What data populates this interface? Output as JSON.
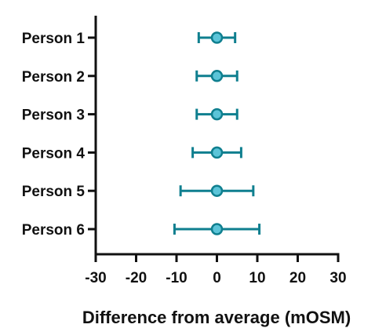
{
  "chart_data": {
    "type": "scatter",
    "orientation": "horizontal",
    "categories": [
      "Person 1",
      "Person 2",
      "Person 3",
      "Person 4",
      "Person 5",
      "Person 6"
    ],
    "points": [
      {
        "label": "Person 1",
        "value": 0,
        "lower": -4.5,
        "upper": 4.5
      },
      {
        "label": "Person 2",
        "value": 0,
        "lower": -5,
        "upper": 5
      },
      {
        "label": "Person 3",
        "value": 0,
        "lower": -5,
        "upper": 5
      },
      {
        "label": "Person 4",
        "value": 0,
        "lower": -6,
        "upper": 6
      },
      {
        "label": "Person 5",
        "value": 0,
        "lower": -9,
        "upper": 9
      },
      {
        "label": "Person 6",
        "value": 0,
        "lower": -10.5,
        "upper": 10.5
      }
    ],
    "xlabel": "Difference from average (mOSM)",
    "xlim": [
      -30,
      30
    ],
    "xticks": [
      -30,
      -20,
      -10,
      0,
      10,
      20,
      30
    ],
    "xtick_labels": [
      "-30",
      "-20",
      "-10",
      "0",
      "10",
      "20",
      "30"
    ],
    "grid": false,
    "legend": "none",
    "colors": {
      "marker_fill": "#5bc4d8",
      "marker_stroke": "#0f7f8f",
      "error_bar": "#0f7f8f",
      "axis": "#111111"
    }
  }
}
